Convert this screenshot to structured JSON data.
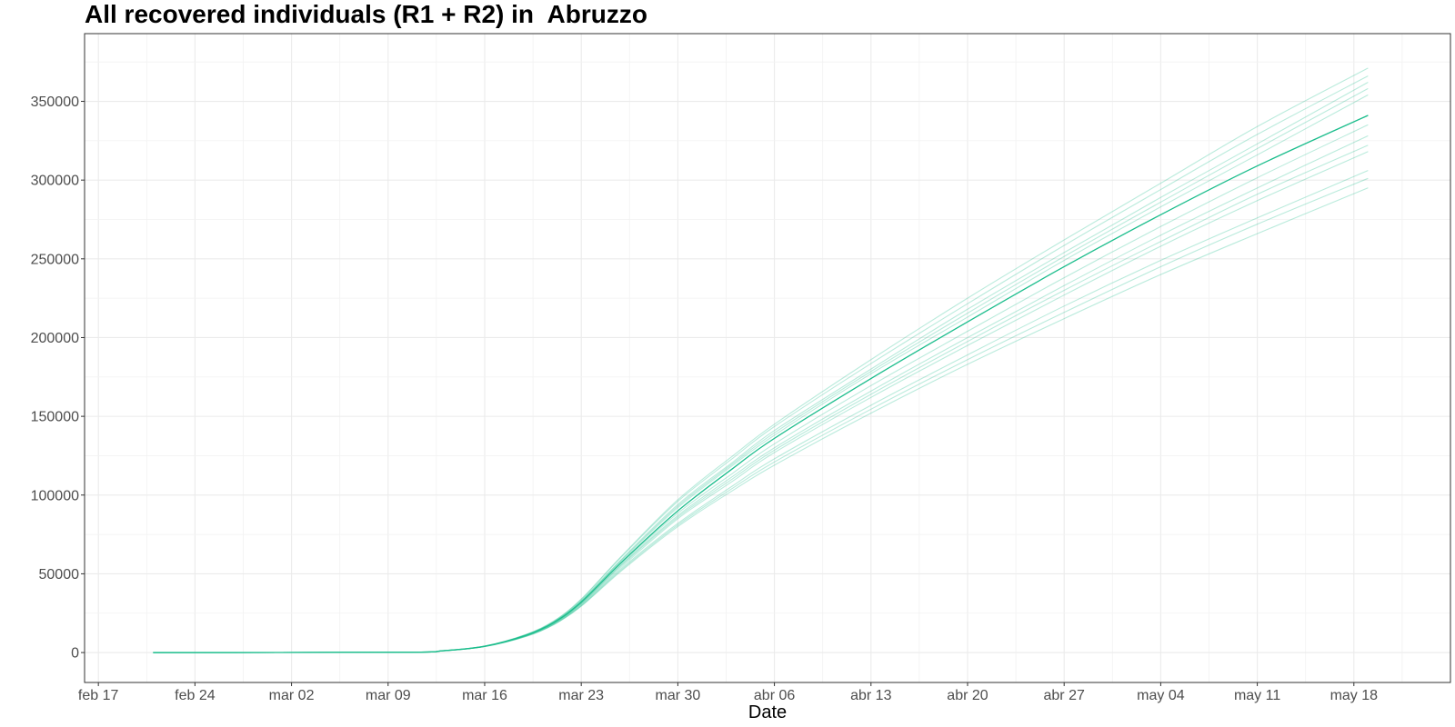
{
  "chart_data": {
    "type": "line",
    "title": "All recovered individuals (R1 + R2) in  Abruzzo",
    "xlabel": "Date",
    "ylabel": "",
    "x_axis": {
      "type": "date",
      "range": [
        "2020-02-16",
        "2020-05-25"
      ],
      "ticks": [
        {
          "date": "2020-02-17",
          "label": "feb 17"
        },
        {
          "date": "2020-02-24",
          "label": "feb 24"
        },
        {
          "date": "2020-03-02",
          "label": "mar 02"
        },
        {
          "date": "2020-03-09",
          "label": "mar 09"
        },
        {
          "date": "2020-03-16",
          "label": "mar 16"
        },
        {
          "date": "2020-03-23",
          "label": "mar 23"
        },
        {
          "date": "2020-03-30",
          "label": "mar 30"
        },
        {
          "date": "2020-04-06",
          "label": "abr 06"
        },
        {
          "date": "2020-04-13",
          "label": "abr 13"
        },
        {
          "date": "2020-04-20",
          "label": "abr 20"
        },
        {
          "date": "2020-04-27",
          "label": "abr 27"
        },
        {
          "date": "2020-05-04",
          "label": "may 04"
        },
        {
          "date": "2020-05-11",
          "label": "may 11"
        },
        {
          "date": "2020-05-18",
          "label": "may 18"
        }
      ]
    },
    "y_axis": {
      "range": [
        -19000,
        393000
      ],
      "ticks": [
        0,
        50000,
        100000,
        150000,
        200000,
        250000,
        300000,
        350000
      ]
    },
    "grid": true,
    "line_color": "#1bbd8c",
    "x": [
      "2020-02-21",
      "2020-03-10",
      "2020-03-13",
      "2020-03-16",
      "2020-03-19",
      "2020-03-21",
      "2020-03-23",
      "2020-03-26",
      "2020-03-30",
      "2020-04-03",
      "2020-04-06",
      "2020-04-13",
      "2020-04-20",
      "2020-04-27",
      "2020-05-04",
      "2020-05-11",
      "2020-05-19"
    ],
    "series": [
      {
        "values": [
          0,
          200,
          1200,
          4000,
          11000,
          19000,
          32000,
          58000,
          90000,
          117000,
          136000,
          174000,
          210000,
          245000,
          278000,
          309000,
          341000
        ]
      },
      {
        "values": [
          0,
          200,
          1200,
          4100,
          11500,
          20000,
          34000,
          62000,
          97000,
          125000,
          145000,
          186000,
          225000,
          262000,
          298000,
          334000,
          371000
        ]
      },
      {
        "values": [
          0,
          200,
          1200,
          4000,
          11200,
          19500,
          33000,
          60000,
          94000,
          121000,
          141000,
          180000,
          218000,
          254000,
          289000,
          323000,
          362000
        ]
      },
      {
        "values": [
          0,
          200,
          1200,
          4000,
          11000,
          19200,
          32500,
          59000,
          92000,
          119000,
          138000,
          177000,
          213000,
          249000,
          283000,
          316000,
          354000
        ]
      },
      {
        "values": [
          0,
          200,
          1100,
          3900,
          10800,
          18600,
          31200,
          56500,
          87000,
          112000,
          130000,
          166000,
          200000,
          233000,
          265000,
          295000,
          328000
        ]
      },
      {
        "values": [
          0,
          200,
          1100,
          3900,
          10600,
          18300,
          30600,
          55000,
          85000,
          109000,
          127000,
          162000,
          195000,
          227000,
          258000,
          287000,
          318000
        ]
      },
      {
        "values": [
          0,
          200,
          1100,
          3800,
          10400,
          17900,
          30000,
          54000,
          82000,
          106000,
          123000,
          157000,
          189000,
          220000,
          249000,
          276000,
          306000
        ]
      },
      {
        "values": [
          0,
          200,
          1100,
          3800,
          10200,
          17600,
          29400,
          52500,
          80000,
          103000,
          119000,
          152000,
          183000,
          212000,
          240000,
          266000,
          295000
        ]
      },
      {
        "values": [
          0,
          200,
          1100,
          3800,
          10300,
          17800,
          29700,
          53200,
          81000,
          104500,
          121000,
          154500,
          186000,
          216000,
          245000,
          272000,
          301000
        ]
      },
      {
        "values": [
          0,
          200,
          1100,
          3900,
          10700,
          18500,
          31000,
          56000,
          86000,
          110500,
          128500,
          164000,
          197500,
          230000,
          261000,
          291000,
          322000
        ]
      },
      {
        "values": [
          0,
          200,
          1200,
          4000,
          11100,
          19300,
          32700,
          59500,
          93000,
          120000,
          139500,
          178500,
          215500,
          251500,
          286000,
          320000,
          358000
        ]
      },
      {
        "values": [
          0,
          200,
          1200,
          4100,
          11400,
          19800,
          33700,
          61500,
          96000,
          123500,
          143500,
          183500,
          221500,
          258500,
          294000,
          329000,
          366000
        ]
      },
      {
        "values": [
          0,
          200,
          1100,
          3900,
          10900,
          18800,
          31600,
          57200,
          88500,
          114000,
          132500,
          169500,
          204000,
          238000,
          270500,
          301500,
          335000
        ]
      }
    ]
  }
}
